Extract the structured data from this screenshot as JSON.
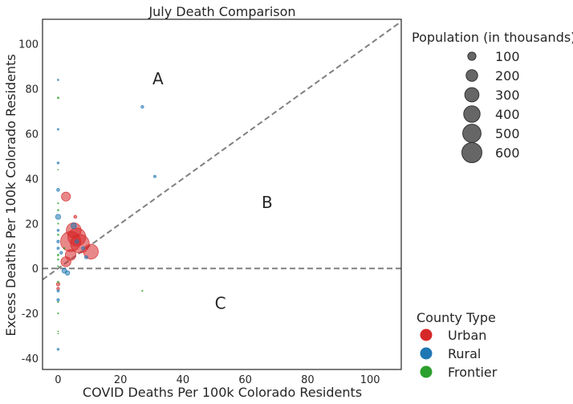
{
  "chart_data": {
    "type": "scatter",
    "title": "July Death Comparison",
    "xlabel": "COVID Deaths Per 100k Colorado Residents",
    "ylabel": "Excess Deaths Per 100k Colorado Residents",
    "xlim": [
      -5,
      110
    ],
    "ylim": [
      -45,
      111
    ],
    "xticks": [
      0,
      20,
      40,
      60,
      80,
      100
    ],
    "yticks": [
      -40,
      -20,
      0,
      20,
      40,
      60,
      80,
      100
    ],
    "grid": false,
    "reference_lines": [
      {
        "kind": "diagonal",
        "slope": 1,
        "style": "dashed"
      },
      {
        "kind": "horizontal",
        "y": 0,
        "style": "dashed"
      }
    ],
    "region_labels": [
      {
        "text": "A",
        "x": 32,
        "y": 82
      },
      {
        "text": "B",
        "x": 67,
        "y": 27
      },
      {
        "text": "C",
        "x": 52,
        "y": -18
      }
    ],
    "size_legend": {
      "title": "Population (in thousands)",
      "values": [
        100,
        200,
        300,
        400,
        500,
        600
      ],
      "labels": [
        "100",
        "200",
        "300",
        "400",
        "500",
        "600"
      ],
      "placement": "top-right outside"
    },
    "color_legend": {
      "title": "County Type",
      "placement": "bottom-right outside",
      "entries": [
        {
          "label": "Urban",
          "color": "#d62728"
        },
        {
          "label": "Rural",
          "color": "#1f77b4"
        },
        {
          "label": "Frontier",
          "color": "#2ca02c"
        }
      ]
    },
    "series": [
      {
        "name": "Urban",
        "color": "#d62728",
        "points": [
          {
            "x": 2.5,
            "y": 32,
            "pop": 120
          },
          {
            "x": 5,
            "y": 17,
            "pop": 330
          },
          {
            "x": 6,
            "y": 14,
            "pop": 480
          },
          {
            "x": 4,
            "y": 12,
            "pop": 600
          },
          {
            "x": 7,
            "y": 11,
            "pop": 520
          },
          {
            "x": 10.5,
            "y": 7.5,
            "pop": 330
          },
          {
            "x": 4,
            "y": 6,
            "pop": 170
          },
          {
            "x": 2.5,
            "y": 3,
            "pop": 150
          },
          {
            "x": 5.5,
            "y": 23,
            "pop": 14
          },
          {
            "x": 0,
            "y": -7,
            "pop": 18
          },
          {
            "x": 0,
            "y": -9,
            "pop": 12
          }
        ]
      },
      {
        "name": "Rural",
        "color": "#1f77b4",
        "points": [
          {
            "x": 0,
            "y": 84,
            "pop": 3
          },
          {
            "x": 27,
            "y": 72,
            "pop": 12
          },
          {
            "x": 0,
            "y": 62,
            "pop": 4
          },
          {
            "x": 0,
            "y": 47,
            "pop": 6
          },
          {
            "x": 31,
            "y": 41,
            "pop": 9
          },
          {
            "x": 0,
            "y": 35,
            "pop": 14
          },
          {
            "x": 0,
            "y": 23,
            "pop": 40
          },
          {
            "x": 0,
            "y": 17,
            "pop": 7
          },
          {
            "x": 0,
            "y": 12,
            "pop": 10
          },
          {
            "x": 0,
            "y": 9,
            "pop": 8
          },
          {
            "x": 1,
            "y": 7,
            "pop": 12
          },
          {
            "x": 5,
            "y": 19,
            "pop": 45
          },
          {
            "x": 8,
            "y": 9,
            "pop": 14
          },
          {
            "x": 9,
            "y": 5,
            "pop": 16
          },
          {
            "x": 2,
            "y": -1,
            "pop": 35
          },
          {
            "x": 3,
            "y": -2,
            "pop": 30
          },
          {
            "x": 0,
            "y": -10,
            "pop": 8
          },
          {
            "x": 0,
            "y": -14,
            "pop": 10
          },
          {
            "x": 0,
            "y": -36,
            "pop": 6
          },
          {
            "x": 6,
            "y": 12,
            "pop": 20
          }
        ]
      },
      {
        "name": "Frontier",
        "color": "#2ca02c",
        "points": [
          {
            "x": 0,
            "y": 76,
            "pop": 4
          },
          {
            "x": 0,
            "y": 44,
            "pop": 1
          },
          {
            "x": 0,
            "y": 29,
            "pop": 2
          },
          {
            "x": 0,
            "y": 26,
            "pop": 3
          },
          {
            "x": 0,
            "y": 20,
            "pop": 2
          },
          {
            "x": 0,
            "y": 15,
            "pop": 3
          },
          {
            "x": 0,
            "y": 6,
            "pop": 4
          },
          {
            "x": 0,
            "y": 4,
            "pop": 3
          },
          {
            "x": 0,
            "y": 1,
            "pop": 2
          },
          {
            "x": 0,
            "y": -6,
            "pop": 4
          },
          {
            "x": 0,
            "y": -15,
            "pop": 2
          },
          {
            "x": 0,
            "y": -20,
            "pop": 2
          },
          {
            "x": 0,
            "y": -28,
            "pop": 1
          },
          {
            "x": 0,
            "y": -29,
            "pop": 1
          },
          {
            "x": 27,
            "y": -10,
            "pop": 2
          },
          {
            "x": 2,
            "y": 9,
            "pop": 3
          }
        ]
      }
    ]
  }
}
